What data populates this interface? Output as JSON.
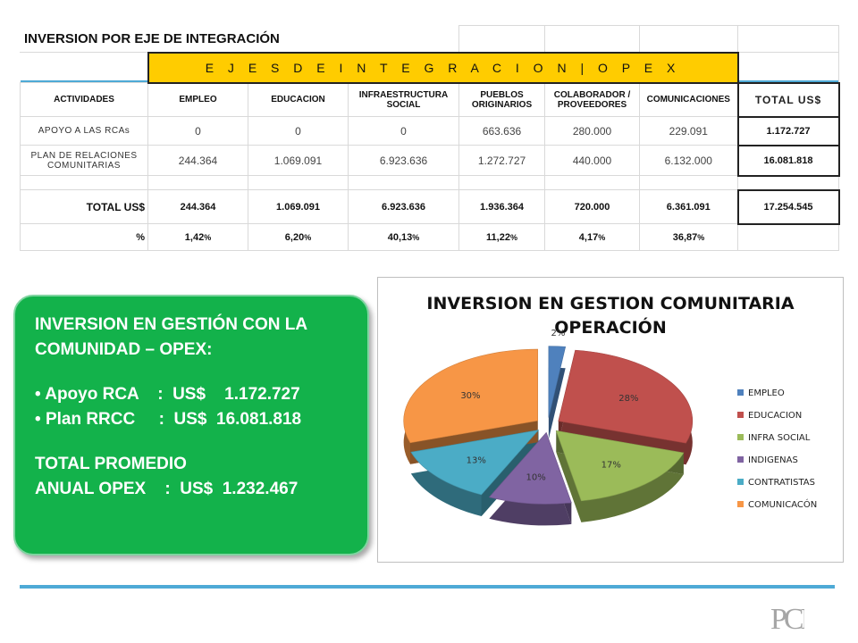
{
  "sheet": {
    "title": "INVERSION POR EJE DE INTEGRACIÓN",
    "band": "E J E S   D E   I N T E G R A C I O N | O P E X",
    "headers": [
      "ACTIVIDADES",
      "EMPLEO",
      "EDUCACION",
      "INFRAESTRUCTURA SOCIAL",
      "PUEBLOS ORIGINARIOS",
      "COLABORADOR / PROVEEDORES",
      "COMUNICACIONES",
      "TOTAL US$"
    ],
    "rows": [
      {
        "label": "APOYO A LAS RCAs",
        "values": [
          "0",
          "0",
          "0",
          "663.636",
          "280.000",
          "229.091"
        ],
        "total": "1.172.727"
      },
      {
        "label": "PLAN DE RELACIONES COMUNITARIAS",
        "values": [
          "244.364",
          "1.069.091",
          "6.923.636",
          "1.272.727",
          "440.000",
          "6.132.000"
        ],
        "total": "16.081.818"
      }
    ],
    "total_row": {
      "label": "TOTAL US$",
      "values": [
        "244.364",
        "1.069.091",
        "6.923.636",
        "1.936.364",
        "720.000",
        "6.361.091"
      ],
      "total": "17.254.545"
    },
    "pct_row": {
      "label": "%",
      "values": [
        "1,42",
        "6,20",
        "40,13",
        "11,22",
        "4,17",
        "36,87"
      ],
      "unit": "%"
    }
  },
  "callout": {
    "heading": "INVERSION EN GESTIÓN CON LA COMUNIDAD – OPEX:",
    "bullet1": "Apoyo RCA    :  US$    1.172.727",
    "bullet2": "Plan RRCC     :  US$  16.081.818",
    "total_line1": "TOTAL PROMEDIO",
    "total_line2": "ANUAL OPEX    :  US$  1.232.467"
  },
  "chart_data": {
    "type": "pie",
    "title": "INVERSION EN GESTION COMUNITARIA OPERACIÓN",
    "title_line1": "INVERSION EN GESTION COMUNITARIA",
    "title_line2": "OPERACIÓN",
    "categories": [
      "EMPLEO",
      "EDUCACION",
      "INFRA SOCIAL",
      "INDIGENAS",
      "CONTRATISTAS",
      "COMUNICACÓN"
    ],
    "values": [
      2,
      28,
      17,
      10,
      13,
      30
    ],
    "labels": [
      "2%",
      "28%",
      "17%",
      "10%",
      "13%",
      "30%"
    ],
    "colors": [
      "#4f81bd",
      "#c0504d",
      "#9bbb59",
      "#8064a2",
      "#4bacc6",
      "#f79646"
    ],
    "legend_position": "right",
    "style": "3d-exploded"
  },
  "logo": "PCI"
}
